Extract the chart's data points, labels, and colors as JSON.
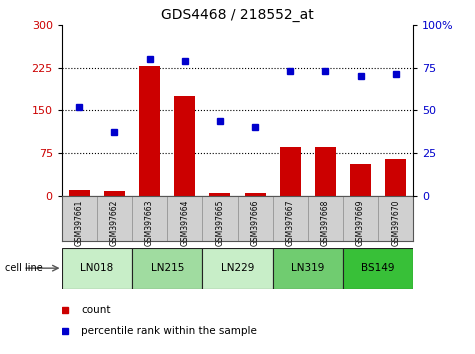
{
  "title": "GDS4468 / 218552_at",
  "samples": [
    "GSM397661",
    "GSM397662",
    "GSM397663",
    "GSM397664",
    "GSM397665",
    "GSM397666",
    "GSM397667",
    "GSM397668",
    "GSM397669",
    "GSM397670"
  ],
  "counts": [
    10,
    8,
    228,
    175,
    5,
    4,
    85,
    85,
    55,
    65
  ],
  "percentile_ranks": [
    52,
    37,
    80,
    79,
    44,
    40,
    73,
    73,
    70,
    71
  ],
  "cell_lines": [
    {
      "name": "LN018",
      "samples": [
        0,
        1
      ],
      "color": "#c8eec8"
    },
    {
      "name": "LN215",
      "samples": [
        2,
        3
      ],
      "color": "#a0dca0"
    },
    {
      "name": "LN229",
      "samples": [
        4,
        5
      ],
      "color": "#c8eec8"
    },
    {
      "name": "LN319",
      "samples": [
        6,
        7
      ],
      "color": "#70cc70"
    },
    {
      "name": "BS149",
      "samples": [
        8,
        9
      ],
      "color": "#38c038"
    }
  ],
  "ylim_left": [
    0,
    300
  ],
  "ylim_right": [
    0,
    100
  ],
  "yticks_left": [
    0,
    75,
    150,
    225,
    300
  ],
  "yticks_right": [
    0,
    25,
    50,
    75,
    100
  ],
  "bar_color": "#cc0000",
  "dot_color": "#0000cc",
  "background_color": "#ffffff",
  "sample_bg_color": "#d0d0d0",
  "legend_items": [
    "count",
    "percentile rank within the sample"
  ]
}
